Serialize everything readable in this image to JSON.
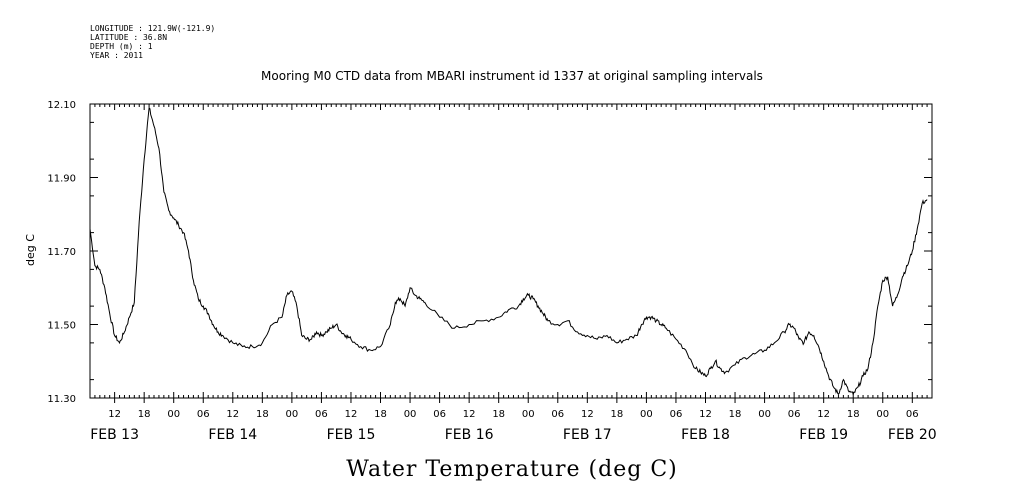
{
  "header": {
    "longitude": "LONGITUDE : 121.9W(-121.9)",
    "latitude": "LATITUDE : 36.8N",
    "depth": "DEPTH (m) : 1",
    "year": "YEAR : 2011"
  },
  "chart_data": {
    "type": "line",
    "title": "Mooring M0 CTD data from MBARI instrument id 1337 at original sampling intervals",
    "xlabel": "Water Temperature (deg C)",
    "ylabel": "deg C",
    "x_unit": "hours since FEB 13 00:00",
    "xlim": [
      7,
      178
    ],
    "ylim": [
      11.3,
      12.1
    ],
    "yticks": [
      "12.10",
      "11.90",
      "11.70",
      "11.50",
      "11.30"
    ],
    "xticks": [
      {
        "x": 12,
        "label": "12"
      },
      {
        "x": 18,
        "label": "18"
      },
      {
        "x": 24,
        "label": "00"
      },
      {
        "x": 30,
        "label": "06"
      },
      {
        "x": 36,
        "label": "12"
      },
      {
        "x": 42,
        "label": "18"
      },
      {
        "x": 48,
        "label": "00"
      },
      {
        "x": 54,
        "label": "06"
      },
      {
        "x": 60,
        "label": "12"
      },
      {
        "x": 66,
        "label": "18"
      },
      {
        "x": 72,
        "label": "00"
      },
      {
        "x": 78,
        "label": "06"
      },
      {
        "x": 84,
        "label": "12"
      },
      {
        "x": 90,
        "label": "18"
      },
      {
        "x": 96,
        "label": "00"
      },
      {
        "x": 102,
        "label": "06"
      },
      {
        "x": 108,
        "label": "12"
      },
      {
        "x": 114,
        "label": "18"
      },
      {
        "x": 120,
        "label": "00"
      },
      {
        "x": 126,
        "label": "06"
      },
      {
        "x": 132,
        "label": "12"
      },
      {
        "x": 138,
        "label": "18"
      },
      {
        "x": 144,
        "label": "00"
      },
      {
        "x": 150,
        "label": "06"
      },
      {
        "x": 156,
        "label": "12"
      },
      {
        "x": 162,
        "label": "18"
      },
      {
        "x": 168,
        "label": "00"
      },
      {
        "x": 174,
        "label": "06"
      }
    ],
    "day_labels": [
      {
        "x": 12,
        "label": "FEB 13"
      },
      {
        "x": 36,
        "label": "FEB 14"
      },
      {
        "x": 60,
        "label": "FEB 15"
      },
      {
        "x": 84,
        "label": "FEB 16"
      },
      {
        "x": 108,
        "label": "FEB 17"
      },
      {
        "x": 132,
        "label": "FEB 18"
      },
      {
        "x": 156,
        "label": "FEB 19"
      },
      {
        "x": 174,
        "label": "FEB 20"
      }
    ],
    "series": [
      {
        "x": [
          7,
          8,
          9,
          10,
          11,
          12,
          13,
          14,
          15,
          16,
          17,
          18,
          19,
          20,
          21,
          22,
          23,
          24,
          25,
          26,
          27,
          28,
          29,
          30,
          31,
          32,
          33,
          34,
          36,
          38,
          40,
          42,
          44,
          46,
          47,
          48,
          49,
          50,
          51,
          52,
          53,
          54,
          55,
          56,
          57,
          58,
          59,
          60,
          62,
          64,
          66,
          68,
          69,
          70,
          71,
          72,
          73,
          74,
          75,
          78,
          81,
          84,
          87,
          90,
          92,
          94,
          95,
          96,
          97,
          98,
          99,
          100,
          102,
          104,
          106,
          108,
          110,
          112,
          114,
          116,
          118,
          119,
          120,
          121,
          122,
          123,
          124,
          126,
          128,
          130,
          131,
          132,
          133,
          134,
          135,
          136,
          138,
          140,
          142,
          144,
          146,
          148,
          149,
          150,
          151,
          152,
          153,
          154,
          155,
          156,
          157,
          158,
          159,
          160,
          161,
          162,
          163,
          164,
          165,
          166,
          167,
          168,
          169,
          170,
          171,
          172,
          173,
          174,
          175,
          176,
          177
        ],
        "values": [
          11.76,
          11.66,
          11.65,
          11.6,
          11.53,
          11.47,
          11.45,
          11.48,
          11.52,
          11.56,
          11.78,
          11.95,
          12.09,
          12.04,
          11.98,
          11.86,
          11.81,
          11.79,
          11.77,
          11.75,
          11.7,
          11.62,
          11.57,
          11.55,
          11.53,
          11.5,
          11.48,
          11.47,
          11.45,
          11.44,
          11.44,
          11.45,
          11.5,
          11.52,
          11.58,
          11.59,
          11.55,
          11.47,
          11.46,
          11.46,
          11.48,
          11.47,
          11.48,
          11.49,
          11.5,
          11.48,
          11.47,
          11.46,
          11.44,
          11.43,
          11.44,
          11.5,
          11.56,
          11.57,
          11.55,
          11.6,
          11.58,
          11.57,
          11.56,
          11.52,
          11.49,
          11.5,
          11.51,
          11.52,
          11.54,
          11.55,
          11.57,
          11.58,
          11.57,
          11.55,
          11.53,
          11.51,
          11.5,
          11.51,
          11.48,
          11.47,
          11.46,
          11.47,
          11.45,
          11.46,
          11.47,
          11.5,
          11.52,
          11.52,
          11.51,
          11.5,
          11.49,
          11.46,
          11.43,
          11.38,
          11.37,
          11.36,
          11.38,
          11.4,
          11.38,
          11.37,
          11.39,
          11.41,
          11.42,
          11.43,
          11.45,
          11.48,
          11.5,
          11.49,
          11.46,
          11.45,
          11.48,
          11.47,
          11.44,
          11.4,
          11.36,
          11.33,
          11.31,
          11.35,
          11.32,
          11.31,
          11.33,
          11.36,
          11.38,
          11.45,
          11.55,
          11.62,
          11.63,
          11.55,
          11.58,
          11.63,
          11.66,
          11.7,
          11.76,
          11.83,
          11.84
        ]
      }
    ],
    "grid": false,
    "line_color": "#000000"
  }
}
